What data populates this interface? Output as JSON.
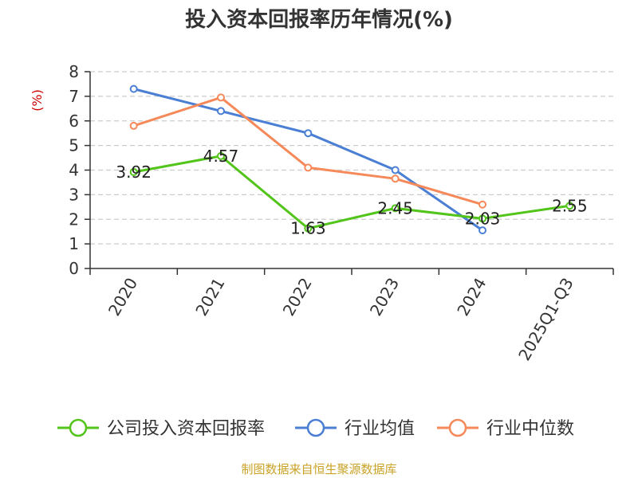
{
  "chart_data": {
    "type": "line",
    "title": "投入资本回报率历年情况(%)",
    "xlabel": "",
    "ylabel": "(%)",
    "ylim": [
      0,
      8
    ],
    "yticks": [
      0,
      1,
      2,
      3,
      4,
      5,
      6,
      7,
      8
    ],
    "grid": true,
    "legend_position": "bottom",
    "categories": [
      "2020",
      "2021",
      "2022",
      "2023",
      "2024",
      "2025Q1-Q3"
    ],
    "series": [
      {
        "name": "公司投入资本回报率",
        "color": "#52c41a",
        "values": [
          3.92,
          4.57,
          1.63,
          2.45,
          2.03,
          2.55
        ],
        "labels": [
          "3.92",
          "4.57",
          "1.63",
          "2.45",
          "2.03",
          "2.55"
        ]
      },
      {
        "name": "行业均值",
        "color": "#4a7fd4",
        "values": [
          7.3,
          6.4,
          5.5,
          4.0,
          1.55,
          null
        ]
      },
      {
        "name": "行业中位数",
        "color": "#f5895a",
        "values": [
          5.8,
          6.95,
          4.1,
          3.65,
          2.6,
          null
        ]
      }
    ]
  },
  "footer": {
    "source": "制图数据来自恒生聚源数据库"
  }
}
